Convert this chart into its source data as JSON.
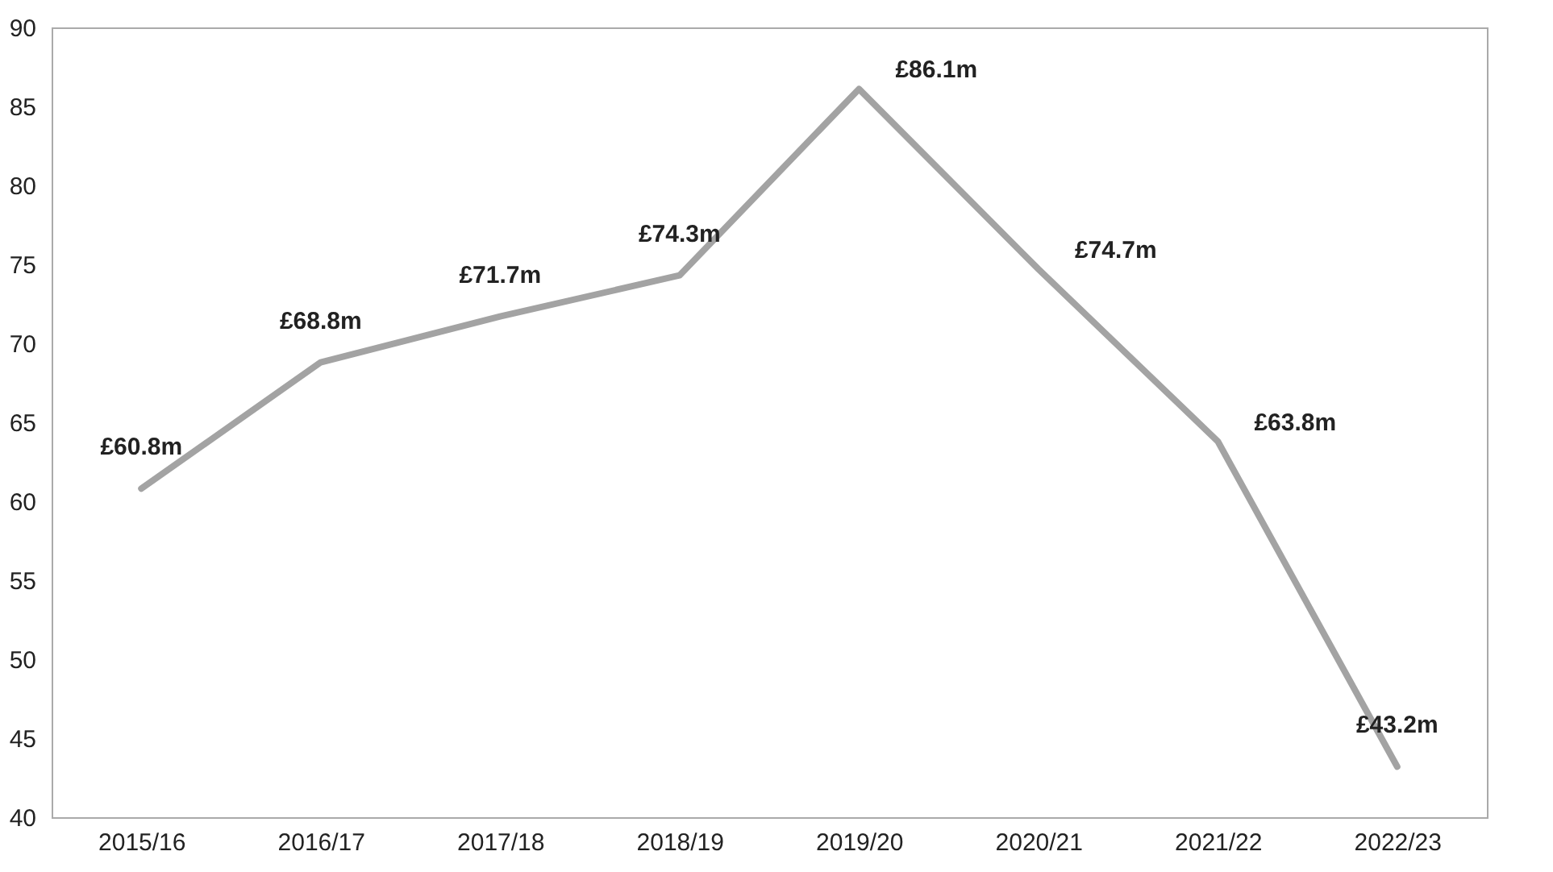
{
  "chart_data": {
    "type": "line",
    "categories": [
      "2015/16",
      "2016/17",
      "2017/18",
      "2018/19",
      "2019/20",
      "2020/21",
      "2021/22",
      "2022/23"
    ],
    "series": [
      {
        "color": "#a3a3a3",
        "values": [
          60.8,
          68.8,
          71.7,
          74.3,
          86.1,
          74.7,
          63.8,
          43.2
        ],
        "value_labels": [
          "£60.8m",
          "£68.8m",
          "£71.7m",
          "£74.3m",
          "£86.1m",
          "£74.7m",
          "£63.8m",
          "£43.2m"
        ]
      }
    ],
    "ylim": [
      40,
      90
    ],
    "yticks": [
      40,
      45,
      50,
      55,
      60,
      65,
      70,
      75,
      80,
      85,
      90
    ],
    "grid": false,
    "marker": "none",
    "line_style": "solid"
  }
}
